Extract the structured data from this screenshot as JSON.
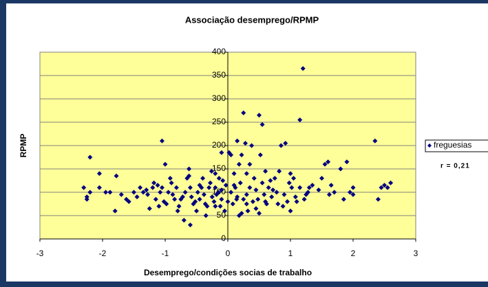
{
  "chart_data": {
    "type": "scatter",
    "title": "Associação desemprego/RPMP",
    "x_label": "Desemprego/condições socias de trabalho",
    "y_label": "RPMP",
    "annotation": "r = 0,21",
    "legend": "right",
    "grid": true,
    "xlim": [
      -3,
      3
    ],
    "xticks": [
      -3,
      -2,
      -1,
      0,
      1,
      2,
      3
    ],
    "ylim": [
      0,
      400
    ],
    "yticks": [
      0,
      50,
      100,
      150,
      200,
      250,
      300,
      350,
      400
    ],
    "series": [
      {
        "name": "freguesias",
        "color": "#000080",
        "x": [
          -2.3,
          -2.25,
          -2.25,
          -2.2,
          -2.2,
          -2.05,
          -2.05,
          -1.95,
          -1.88,
          -1.8,
          -1.78,
          -1.7,
          -1.62,
          -1.58,
          -1.5,
          -1.45,
          -1.4,
          -1.35,
          -1.3,
          -1.28,
          -1.25,
          -1.2,
          -1.18,
          -1.15,
          -1.12,
          -1.1,
          -1.08,
          -1.05,
          -1.05,
          -1.02,
          -1.0,
          -0.98,
          -0.95,
          -0.92,
          -0.9,
          -0.88,
          -0.85,
          -0.82,
          -0.8,
          -0.78,
          -0.75,
          -0.72,
          -0.7,
          -0.68,
          -0.65,
          -0.62,
          -0.62,
          -0.6,
          -0.58,
          -0.55,
          -0.52,
          -0.5,
          -0.48,
          -0.45,
          -0.42,
          -0.4,
          -0.38,
          -0.36,
          -0.35,
          -0.33,
          -0.3,
          -0.28,
          -0.26,
          -0.25,
          -0.22,
          -0.2,
          -0.2,
          -0.18,
          -0.15,
          -0.14,
          -0.12,
          -0.1,
          -0.1,
          -0.08,
          -0.05,
          -0.03,
          0,
          0.02,
          0.05,
          0.05,
          0.08,
          0.1,
          0.12,
          0.14,
          0.15,
          0.18,
          0.18,
          0.2,
          0.22,
          0.22,
          0.25,
          0.25,
          0.28,
          0.3,
          0.3,
          0.32,
          0.35,
          0.35,
          0.38,
          0.4,
          0.42,
          0.45,
          0.48,
          0.5,
          0.5,
          0.52,
          0.55,
          0.55,
          0.58,
          0.6,
          0.62,
          0.65,
          0.68,
          0.7,
          0.72,
          0.75,
          0.78,
          0.8,
          0.82,
          0.85,
          0.88,
          0.9,
          0.92,
          0.95,
          0.98,
          1.0,
          1.02,
          1.05,
          1.08,
          1.1,
          1.15,
          1.15,
          1.2,
          1.22,
          1.25,
          1.28,
          1.3,
          1.35,
          1.45,
          1.5,
          1.55,
          1.6,
          1.62,
          1.65,
          1.7,
          1.8,
          1.85,
          1.9,
          1.95,
          2.0,
          2.0,
          2.35,
          2.4,
          2.45,
          2.5,
          2.55,
          2.6,
          -0.1,
          0.1,
          0.3,
          0.45,
          -0.45,
          -0.6,
          0.6,
          1.0,
          0.15,
          -0.2
        ],
        "values": [
          110,
          90,
          85,
          100,
          175,
          140,
          110,
          100,
          100,
          60,
          135,
          95,
          85,
          80,
          100,
          90,
          110,
          100,
          105,
          95,
          65,
          110,
          120,
          85,
          115,
          70,
          100,
          210,
          110,
          80,
          160,
          75,
          100,
          130,
          120,
          95,
          85,
          110,
          60,
          70,
          85,
          90,
          40,
          100,
          130,
          135,
          150,
          30,
          90,
          75,
          80,
          60,
          100,
          85,
          110,
          130,
          95,
          75,
          50,
          70,
          110,
          120,
          145,
          90,
          80,
          110,
          140,
          95,
          100,
          130,
          70,
          85,
          105,
          125,
          60,
          115,
          80,
          185,
          180,
          100,
          75,
          140,
          110,
          85,
          210,
          50,
          160,
          120,
          55,
          180,
          270,
          85,
          205,
          95,
          140,
          60,
          160,
          110,
          200,
          80,
          130,
          105,
          85,
          55,
          265,
          180,
          245,
          120,
          95,
          145,
          75,
          110,
          125,
          90,
          105,
          130,
          100,
          75,
          145,
          200,
          70,
          95,
          205,
          80,
          120,
          140,
          110,
          130,
          90,
          80,
          255,
          110,
          365,
          85,
          95,
          100,
          110,
          115,
          105,
          130,
          160,
          165,
          95,
          115,
          100,
          150,
          85,
          165,
          100,
          110,
          95,
          210,
          85,
          110,
          115,
          110,
          120,
          185,
          115,
          75,
          65,
          115,
          110,
          80,
          60,
          90,
          70
        ]
      }
    ]
  }
}
